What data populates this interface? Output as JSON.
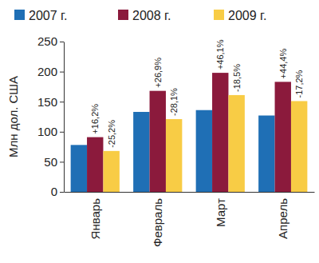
{
  "chart_data": {
    "type": "bar",
    "y_label": "Млн дол. США",
    "categories": [
      "Январь",
      "Февраль",
      "Март",
      "Апрель"
    ],
    "series": [
      {
        "name": "2007 г.",
        "color": "#1f6fb5",
        "values": [
          78,
          133,
          136,
          127
        ]
      },
      {
        "name": "2008 г.",
        "color": "#8b1a3c",
        "values": [
          91,
          168,
          198,
          183
        ],
        "change_labels": [
          "+16,2%",
          "+26,9%",
          "+46,1%",
          "+44,4%"
        ]
      },
      {
        "name": "2009 г.",
        "color": "#f8cc45",
        "values": [
          68,
          121,
          161,
          151
        ],
        "change_labels": [
          "-25,2%",
          "-28,1%",
          "-18,5%",
          "-17,2%"
        ]
      }
    ],
    "ylim": [
      0,
      250
    ],
    "yticks": [
      0,
      50,
      100,
      150,
      200,
      250
    ],
    "grid": false,
    "legend": "top"
  }
}
